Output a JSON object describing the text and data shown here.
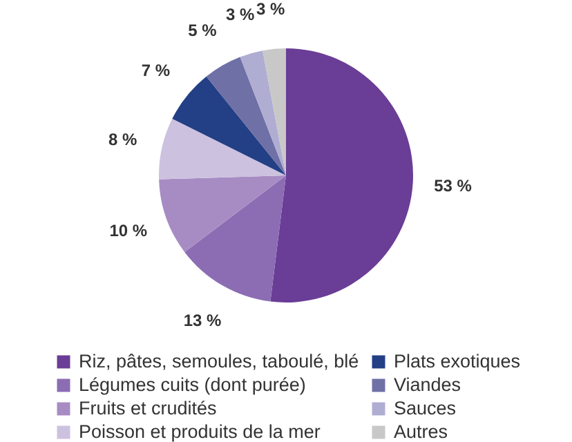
{
  "chart_data": {
    "type": "pie",
    "categories": [
      "Riz, pâtes, semoules, taboulé, blé",
      "Légumes cuits (dont purée)",
      "Fruits et crudités",
      "Poisson et produits de la mer",
      "Plats exotiques",
      "Viandes",
      "Sauces",
      "Autres"
    ],
    "values": [
      53,
      13,
      10,
      8,
      7,
      5,
      3,
      3
    ],
    "colors": [
      "#6a3d96",
      "#8c6db3",
      "#a78cc4",
      "#cdc1e0",
      "#233f85",
      "#6f70a6",
      "#b0add3",
      "#c8c8c8"
    ],
    "value_labels": [
      "53 %",
      "13 %",
      "10 %",
      "8 %",
      "7 %",
      "5 %",
      "3 %",
      "3 %"
    ],
    "legend": "bottom"
  }
}
